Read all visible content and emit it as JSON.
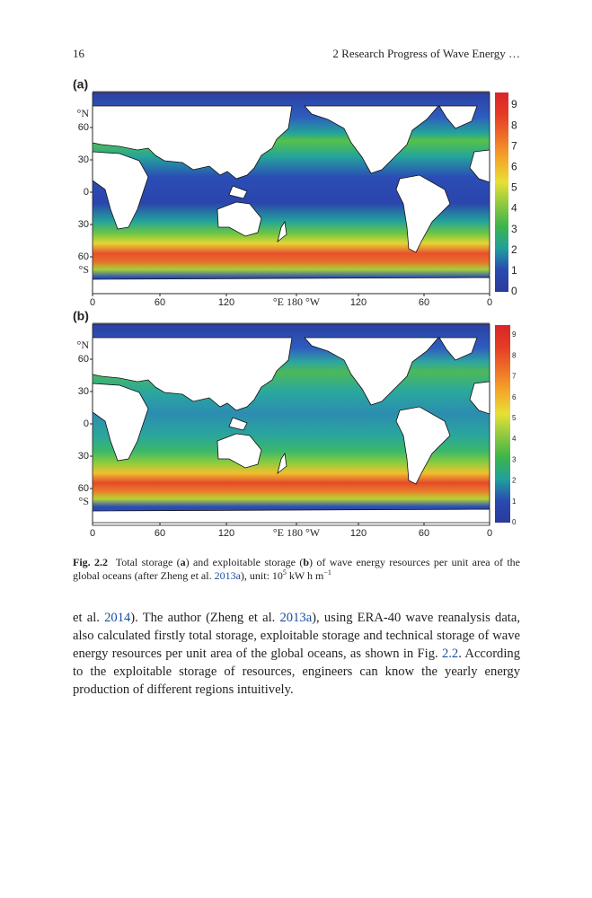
{
  "header": {
    "page_number": "16",
    "running_title": "2   Research Progress of Wave Energy …"
  },
  "figures": [
    {
      "label": "(a)",
      "lat_labels": [
        "°N",
        "60",
        "30",
        "0",
        "30",
        "60",
        "°S"
      ],
      "lon_labels": [
        "0",
        "60",
        "120",
        "°E 180 °W",
        "120",
        "60",
        "0"
      ],
      "colorbar_ticks": [
        "9",
        "8",
        "7",
        "6",
        "5",
        "4",
        "3",
        "2",
        "1",
        "0"
      ]
    },
    {
      "label": "(b)",
      "lat_labels": [
        "°N",
        "60",
        "30",
        "0",
        "30",
        "60",
        "°S"
      ],
      "lon_labels": [
        "0",
        "60",
        "120",
        "°E 180 °W",
        "120",
        "60",
        "0"
      ],
      "colorbar_ticks": [
        "9",
        "8",
        "7",
        "6",
        "5",
        "4",
        "3",
        "2",
        "1",
        "0"
      ]
    }
  ],
  "caption": {
    "label": "Fig. 2.2",
    "t1": "Total storage (",
    "a": "a",
    "t2": ") and exploitable storage (",
    "b": "b",
    "t3": ") of wave energy resources per unit area of the global oceans (after Zheng et al. ",
    "ref": "2013a",
    "t4": "), unit: 10",
    "exp1": "5",
    "t5": " kW h m",
    "exp2": "−1"
  },
  "body": {
    "t1": "et al. ",
    "ref1": "2014",
    "t2": "). The author (Zheng et al. ",
    "ref2": "2013a",
    "t3": "), using ERA-40 wave reanalysis data, also calculated firstly total storage, exploitable storage and technical storage of wave energy resources per unit area of the global oceans, as shown in Fig. ",
    "ref3": "2.2",
    "t4": ". According to the exploitable storage of resources, engineers can know the yearly energy production of different regions intuitively."
  }
}
